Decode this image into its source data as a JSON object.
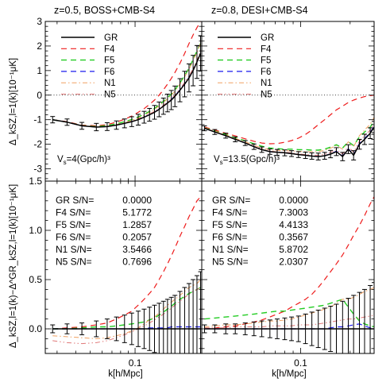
{
  "colors": {
    "GR": "#000000",
    "F4": "#ee1c1c",
    "F5": "#22cc22",
    "F6": "#1a1aee",
    "N1": "#f0a060",
    "N5": "#e07878"
  },
  "figure": {
    "ylabel_top": "Δ_kSZ,l=1(k)[10⁻¹μK]",
    "ylabel_bottom": "Δ_kSZ,l=1(k)−Δ^GR_kSZ,l=1(k)[10⁻¹μK]",
    "xlabel_left": "k[h/Mpc]",
    "xlabel_right": "k[h/Mpc]"
  },
  "chart_data": [
    {
      "type": "line",
      "panel": "top-left",
      "title": "z=0.5, BOSS+CMB-S4",
      "ylabel": "Δ_kSZ,l=1(k)[10⁻¹μK]",
      "xlabel": "",
      "xscale": "log",
      "xlim": [
        0.025,
        0.28
      ],
      "ylim": [
        -3.5,
        3
      ],
      "yticks": [
        -3,
        -2,
        -1,
        0,
        1,
        2,
        3
      ],
      "xticks_labeled": [],
      "grid": false,
      "legend_position": "upper-left",
      "legend": [
        "GR",
        "F4",
        "F5",
        "F6",
        "N1",
        "N5"
      ],
      "annotation": "V_s=4(Gpc/h)³",
      "errorbar_series": "GR",
      "x": [
        0.028,
        0.035,
        0.044,
        0.055,
        0.065,
        0.075,
        0.085,
        0.095,
        0.105,
        0.115,
        0.125,
        0.135,
        0.145,
        0.155,
        0.165,
        0.175,
        0.185,
        0.2,
        0.215,
        0.23,
        0.245,
        0.26,
        0.275
      ],
      "series": [
        {
          "name": "GR",
          "values": [
            -1.0,
            -1.1,
            -1.25,
            -1.3,
            -1.28,
            -1.22,
            -1.15,
            -1.08,
            -1.0,
            -0.9,
            -0.8,
            -0.7,
            -0.58,
            -0.45,
            -0.32,
            -0.2,
            -0.05,
            0.2,
            0.45,
            0.7,
            1.0,
            1.35,
            1.7
          ],
          "errors": [
            0.13,
            0.13,
            0.14,
            0.15,
            0.16,
            0.17,
            0.18,
            0.2,
            0.22,
            0.24,
            0.26,
            0.28,
            0.3,
            0.33,
            0.36,
            0.39,
            0.42,
            0.47,
            0.52,
            0.57,
            0.62,
            0.67,
            0.72
          ]
        },
        {
          "name": "F4",
          "values": [
            -1.0,
            -1.08,
            -1.22,
            -1.25,
            -1.2,
            -1.1,
            -0.98,
            -0.85,
            -0.7,
            -0.55,
            -0.38,
            -0.2,
            0.0,
            0.22,
            0.45,
            0.68,
            0.92,
            1.3,
            1.7,
            2.1,
            2.45,
            2.75,
            3.0
          ]
        },
        {
          "name": "F5",
          "values": [
            -1.0,
            -1.1,
            -1.24,
            -1.28,
            -1.24,
            -1.17,
            -1.08,
            -0.99,
            -0.89,
            -0.78,
            -0.66,
            -0.54,
            -0.4,
            -0.25,
            -0.1,
            0.05,
            0.22,
            0.5,
            0.8,
            1.1,
            1.45,
            1.8,
            2.1
          ]
        },
        {
          "name": "F6",
          "values": [
            -1.0,
            -1.1,
            -1.25,
            -1.3,
            -1.28,
            -1.22,
            -1.15,
            -1.08,
            -0.99,
            -0.89,
            -0.79,
            -0.69,
            -0.57,
            -0.44,
            -0.31,
            -0.18,
            -0.03,
            0.22,
            0.47,
            0.72,
            1.02,
            1.37,
            1.72
          ]
        },
        {
          "name": "N1",
          "values": [
            -1.0,
            -1.1,
            -1.25,
            -1.3,
            -1.27,
            -1.2,
            -1.12,
            -1.03,
            -0.93,
            -0.82,
            -0.7,
            -0.58,
            -0.44,
            -0.3,
            -0.15,
            0.0,
            0.15,
            0.45,
            0.75,
            1.05,
            1.4,
            1.75,
            2.1
          ]
        },
        {
          "name": "N5",
          "values": [
            -1.0,
            -1.1,
            -1.25,
            -1.3,
            -1.28,
            -1.22,
            -1.14,
            -1.06,
            -0.97,
            -0.87,
            -0.77,
            -0.66,
            -0.54,
            -0.41,
            -0.28,
            -0.15,
            0.0,
            0.26,
            0.52,
            0.78,
            1.08,
            1.42,
            1.78
          ]
        }
      ]
    },
    {
      "type": "line",
      "panel": "top-right",
      "title": "z=0.8, DESI+CMB-S4",
      "ylabel": "",
      "xlabel": "",
      "xscale": "log",
      "xlim": [
        0.025,
        0.28
      ],
      "ylim": [
        -3.5,
        3
      ],
      "yticks": [
        -3,
        -2,
        -1,
        0,
        1,
        2,
        3
      ],
      "xticks_labeled": [],
      "grid": false,
      "legend_position": "upper-left",
      "legend": [
        "GR",
        "F4",
        "F5",
        "F6",
        "N1",
        "N5"
      ],
      "annotation": "V_s=13.5(Gpc/h)³",
      "errorbar_series": "GR",
      "x": [
        0.026,
        0.03,
        0.035,
        0.04,
        0.046,
        0.052,
        0.058,
        0.065,
        0.072,
        0.08,
        0.088,
        0.097,
        0.107,
        0.117,
        0.128,
        0.14,
        0.152,
        0.165,
        0.18,
        0.195,
        0.21,
        0.228,
        0.245,
        0.265,
        0.28
      ],
      "series": [
        {
          "name": "GR",
          "values": [
            -1.35,
            -1.5,
            -1.65,
            -1.8,
            -1.95,
            -2.1,
            -2.22,
            -2.3,
            -2.33,
            -2.35,
            -2.38,
            -2.42,
            -2.45,
            -2.48,
            -2.5,
            -2.47,
            -2.4,
            -2.3,
            -2.5,
            -2.2,
            -2.45,
            -2.0,
            -1.8,
            -1.55,
            -1.3
          ],
          "errors": [
            0.1,
            0.1,
            0.1,
            0.1,
            0.1,
            0.11,
            0.11,
            0.11,
            0.12,
            0.12,
            0.12,
            0.12,
            0.13,
            0.13,
            0.14,
            0.14,
            0.15,
            0.16,
            0.17,
            0.18,
            0.19,
            0.2,
            0.21,
            0.22,
            0.23
          ]
        },
        {
          "name": "F4",
          "values": [
            -1.3,
            -1.42,
            -1.55,
            -1.66,
            -1.78,
            -1.88,
            -1.95,
            -1.98,
            -1.97,
            -1.92,
            -1.85,
            -1.75,
            -1.6,
            -1.42,
            -1.2,
            -1.0,
            -0.8,
            -0.6,
            -0.45,
            -0.3,
            -0.2,
            -0.12,
            -0.06,
            -0.02,
            0.0
          ]
        },
        {
          "name": "F5",
          "values": [
            -1.33,
            -1.46,
            -1.6,
            -1.73,
            -1.86,
            -1.98,
            -2.08,
            -2.15,
            -2.18,
            -2.2,
            -2.2,
            -2.22,
            -2.22,
            -2.24,
            -2.24,
            -2.2,
            -2.12,
            -2.02,
            -2.15,
            -1.9,
            -2.05,
            -1.7,
            -1.5,
            -1.3,
            -1.05
          ]
        },
        {
          "name": "F6",
          "values": [
            -1.35,
            -1.5,
            -1.65,
            -1.8,
            -1.95,
            -2.1,
            -2.22,
            -2.3,
            -2.33,
            -2.35,
            -2.38,
            -2.42,
            -2.45,
            -2.48,
            -2.5,
            -2.47,
            -2.39,
            -2.28,
            -2.48,
            -2.18,
            -2.42,
            -1.97,
            -1.77,
            -1.52,
            -1.27
          ]
        },
        {
          "name": "N1",
          "values": [
            -1.33,
            -1.47,
            -1.62,
            -1.76,
            -1.9,
            -2.04,
            -2.15,
            -2.22,
            -2.25,
            -2.26,
            -2.27,
            -2.29,
            -2.3,
            -2.3,
            -2.3,
            -2.25,
            -2.16,
            -2.05,
            -2.2,
            -1.9,
            -2.1,
            -1.65,
            -1.42,
            -1.18,
            -0.9
          ]
        },
        {
          "name": "N5",
          "values": [
            -1.34,
            -1.49,
            -1.64,
            -1.79,
            -1.94,
            -2.08,
            -2.2,
            -2.28,
            -2.31,
            -2.33,
            -2.35,
            -2.39,
            -2.42,
            -2.44,
            -2.45,
            -2.41,
            -2.33,
            -2.22,
            -2.4,
            -2.1,
            -2.32,
            -1.88,
            -1.66,
            -1.42,
            -1.15
          ]
        }
      ]
    },
    {
      "type": "line",
      "panel": "bottom-left",
      "title": "",
      "ylabel": "Δ_kSZ,l=1(k)−Δ^GR_kSZ,l=1(k)[10⁻¹μK]",
      "xlabel": "k[h/Mpc]",
      "xscale": "log",
      "xlim": [
        0.025,
        0.28
      ],
      "ylim": [
        -0.25,
        1.5
      ],
      "yticks": [
        0.0,
        0.5,
        1.0,
        1.5
      ],
      "ytick_labels": [
        "0.0",
        "0.5",
        "1.0",
        "1.5"
      ],
      "xticks_labeled": [
        0.1
      ],
      "xtick_labels": [
        "0.1"
      ],
      "grid": false,
      "sn_table": [
        {
          "name": "GR",
          "text": "GR S/N=",
          "value": "0.0000"
        },
        {
          "name": "F4",
          "text": "F4 S/N=",
          "value": "5.1772"
        },
        {
          "name": "F5",
          "text": "F5 S/N=",
          "value": "1.2857"
        },
        {
          "name": "F6",
          "text": "F6 S/N=",
          "value": "0.2057"
        },
        {
          "name": "N1",
          "text": "N1 S/N=",
          "value": "3.5466"
        },
        {
          "name": "N5",
          "text": "N5 S/N=",
          "value": "0.7696"
        }
      ],
      "errorbar_series": "GR",
      "x": [
        0.028,
        0.035,
        0.044,
        0.055,
        0.065,
        0.075,
        0.085,
        0.095,
        0.105,
        0.115,
        0.125,
        0.135,
        0.145,
        0.155,
        0.165,
        0.175,
        0.185,
        0.2,
        0.215,
        0.23,
        0.245,
        0.26,
        0.275
      ],
      "series": [
        {
          "name": "GR",
          "values": [
            0,
            0,
            0,
            0,
            0,
            0,
            0,
            0,
            0,
            0,
            0,
            0,
            0,
            0,
            0,
            0,
            0,
            0,
            0,
            0,
            0,
            0,
            0
          ],
          "errors": [
            0.04,
            0.05,
            0.06,
            0.08,
            0.1,
            0.12,
            0.14,
            0.16,
            0.18,
            0.2,
            0.22,
            0.24,
            0.26,
            0.28,
            0.3,
            0.32,
            0.34,
            0.38,
            0.42,
            0.46,
            0.5,
            0.54,
            0.58
          ]
        },
        {
          "name": "F4",
          "values": [
            0.0,
            0.01,
            0.02,
            0.04,
            0.06,
            0.1,
            0.14,
            0.18,
            0.24,
            0.3,
            0.36,
            0.42,
            0.5,
            0.58,
            0.66,
            0.74,
            0.82,
            0.94,
            1.04,
            1.14,
            1.22,
            1.3,
            1.34
          ]
        },
        {
          "name": "F5",
          "values": [
            0.0,
            0.0,
            0.01,
            0.02,
            0.02,
            0.03,
            0.04,
            0.05,
            0.06,
            0.07,
            0.09,
            0.11,
            0.14,
            0.17,
            0.2,
            0.23,
            0.26,
            0.3,
            0.33,
            0.36,
            0.38,
            0.4,
            0.42
          ]
        },
        {
          "name": "F6",
          "values": [
            0.0,
            0.0,
            0.0,
            0.0,
            0.0,
            0.0,
            0.0,
            0.0,
            0.0,
            0.0,
            0.01,
            0.01,
            0.01,
            0.01,
            0.01,
            0.02,
            0.02,
            0.02,
            0.02,
            0.02,
            0.02,
            0.02,
            0.02
          ]
        },
        {
          "name": "N1",
          "values": [
            -0.07,
            -0.08,
            -0.09,
            -0.1,
            -0.09,
            -0.07,
            -0.05,
            -0.02,
            0.01,
            0.05,
            0.09,
            0.12,
            0.16,
            0.2,
            0.24,
            0.27,
            0.3,
            0.34,
            0.38,
            0.42,
            0.44,
            0.46,
            0.5
          ]
        },
        {
          "name": "N5",
          "values": [
            -0.12,
            -0.14,
            -0.15,
            -0.14,
            -0.12,
            -0.09,
            -0.06,
            -0.03,
            0.0,
            0.03,
            0.06,
            0.09,
            0.12,
            0.15,
            0.18,
            0.21,
            0.24,
            0.28,
            0.32,
            0.35,
            0.38,
            0.4,
            0.42
          ]
        }
      ]
    },
    {
      "type": "line",
      "panel": "bottom-right",
      "title": "",
      "ylabel": "",
      "xlabel": "k[h/Mpc]",
      "xscale": "log",
      "xlim": [
        0.025,
        0.28
      ],
      "ylim": [
        -0.25,
        1.5
      ],
      "yticks": [
        0.0,
        0.5,
        1.0,
        1.5
      ],
      "xticks_labeled": [
        0.1
      ],
      "xtick_labels": [
        "0.1"
      ],
      "grid": false,
      "sn_table": [
        {
          "name": "GR",
          "text": "GR S/N=",
          "value": "0.0000"
        },
        {
          "name": "F4",
          "text": "F4 S/N=",
          "value": "7.3003"
        },
        {
          "name": "F5",
          "text": "F5 S/N=",
          "value": "4.4133"
        },
        {
          "name": "F6",
          "text": "F6 S/N=",
          "value": "0.3567"
        },
        {
          "name": "N1",
          "text": "N1 S/N=",
          "value": "5.8702"
        },
        {
          "name": "N5",
          "text": "N5 S/N=",
          "value": "2.0307"
        }
      ],
      "errorbar_series": "GR",
      "x": [
        0.026,
        0.03,
        0.035,
        0.04,
        0.046,
        0.052,
        0.058,
        0.065,
        0.072,
        0.08,
        0.088,
        0.097,
        0.107,
        0.117,
        0.128,
        0.14,
        0.152,
        0.165,
        0.18,
        0.195,
        0.21,
        0.228,
        0.245,
        0.265,
        0.28
      ],
      "series": [
        {
          "name": "GR",
          "values": [
            0,
            0,
            0,
            0,
            0,
            0,
            0,
            0,
            0,
            0,
            0,
            0,
            0,
            0,
            0,
            0,
            0,
            0,
            0,
            0,
            0,
            0,
            0,
            0,
            0
          ],
          "errors": [
            0.04,
            0.04,
            0.05,
            0.05,
            0.06,
            0.07,
            0.08,
            0.09,
            0.1,
            0.11,
            0.12,
            0.13,
            0.15,
            0.17,
            0.19,
            0.21,
            0.23,
            0.25,
            0.28,
            0.31,
            0.34,
            0.37,
            0.4,
            0.44,
            0.47
          ]
        },
        {
          "name": "F4",
          "values": [
            0.0,
            0.01,
            0.02,
            0.03,
            0.05,
            0.07,
            0.09,
            0.12,
            0.15,
            0.18,
            0.22,
            0.26,
            0.3,
            0.35,
            0.42,
            0.5,
            0.58,
            0.66,
            0.75,
            0.85,
            0.95,
            1.05,
            1.15,
            1.27,
            1.34
          ]
        },
        {
          "name": "F5",
          "values": [
            0.1,
            0.11,
            0.12,
            0.13,
            0.14,
            0.15,
            0.16,
            0.17,
            0.18,
            0.18,
            0.19,
            0.2,
            0.21,
            0.22,
            0.23,
            0.24,
            0.26,
            0.28,
            0.3,
            0.22,
            0.15,
            0.08,
            0.05,
            0.03,
            0.02
          ]
        },
        {
          "name": "F6",
          "values": [
            0.0,
            0.0,
            0.0,
            0.0,
            0.0,
            0.0,
            0.0,
            0.0,
            0.0,
            0.0,
            0.0,
            0.0,
            0.0,
            0.0,
            0.0,
            0.0,
            0.01,
            0.02,
            0.02,
            0.03,
            0.04,
            0.05,
            0.03,
            0.01,
            0.0
          ]
        },
        {
          "name": "N1",
          "values": [
            0.02,
            0.03,
            0.04,
            0.04,
            0.05,
            0.06,
            0.07,
            0.08,
            0.08,
            0.09,
            0.1,
            0.12,
            0.14,
            0.16,
            0.18,
            0.2,
            0.22,
            0.26,
            0.3,
            0.3,
            0.32,
            0.35,
            0.38,
            0.4,
            0.42
          ]
        },
        {
          "name": "N5",
          "values": [
            0.01,
            0.01,
            0.01,
            0.02,
            0.02,
            0.02,
            0.02,
            0.03,
            0.03,
            0.03,
            0.03,
            0.04,
            0.04,
            0.04,
            0.05,
            0.06,
            0.07,
            0.08,
            0.09,
            0.1,
            0.1,
            0.11,
            0.12,
            0.13,
            0.14
          ]
        }
      ]
    }
  ]
}
